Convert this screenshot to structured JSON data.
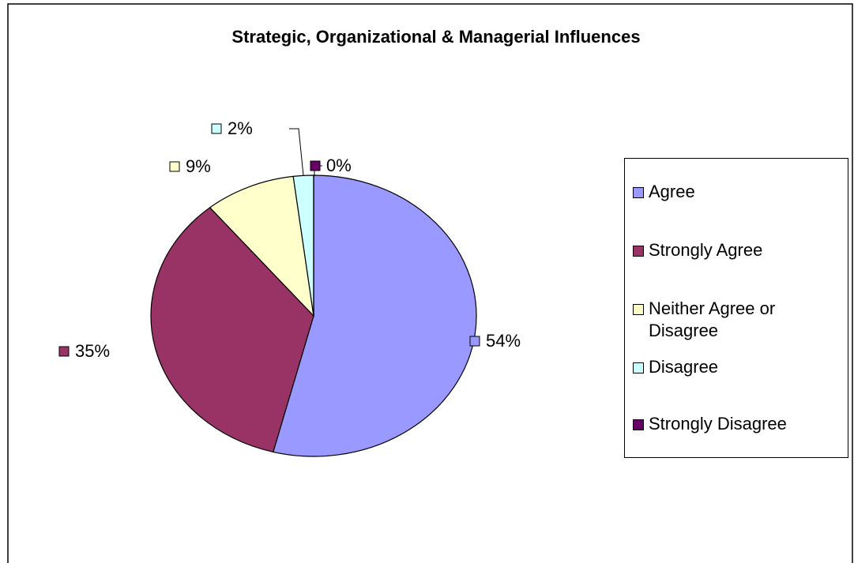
{
  "chart_data": {
    "type": "pie",
    "title": "Strategic, Organizational & Managerial Influences",
    "categories": [
      "Agree",
      "Strongly Agree",
      "Neither Agree or Disagree",
      "Disagree",
      "Strongly Disagree"
    ],
    "values": [
      54,
      35,
      9,
      2,
      0
    ],
    "value_labels": [
      "54%",
      "35%",
      "9%",
      "2%",
      "0%"
    ],
    "colors": [
      "#9999ff",
      "#993366",
      "#ffffcc",
      "#ccffff",
      "#660066"
    ],
    "legend": "right"
  }
}
